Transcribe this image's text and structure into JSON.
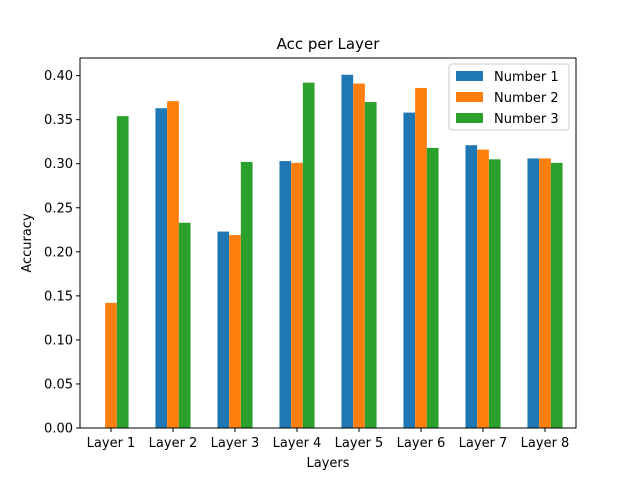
{
  "chart_data": {
    "type": "bar",
    "title": "Acc per Layer",
    "xlabel": "Layers",
    "ylabel": "Accuracy",
    "categories": [
      "Layer 1",
      "Layer 2",
      "Layer 3",
      "Layer 4",
      "Layer 5",
      "Layer 6",
      "Layer 7",
      "Layer 8"
    ],
    "series": [
      {
        "name": "Number 1",
        "color": "#1f77b4",
        "values": [
          0.0,
          0.363,
          0.223,
          0.303,
          0.401,
          0.358,
          0.321,
          0.306
        ]
      },
      {
        "name": "Number 2",
        "color": "#ff7f0e",
        "values": [
          0.142,
          0.371,
          0.219,
          0.301,
          0.391,
          0.386,
          0.316,
          0.306
        ]
      },
      {
        "name": "Number 3",
        "color": "#2ca02c",
        "values": [
          0.354,
          0.233,
          0.302,
          0.392,
          0.37,
          0.318,
          0.305,
          0.301
        ]
      }
    ],
    "ylim": [
      0.0,
      0.42
    ],
    "yticks": [
      "0.00",
      "0.05",
      "0.10",
      "0.15",
      "0.20",
      "0.25",
      "0.30",
      "0.35",
      "0.40"
    ],
    "grid": false,
    "legend": "top-right"
  }
}
